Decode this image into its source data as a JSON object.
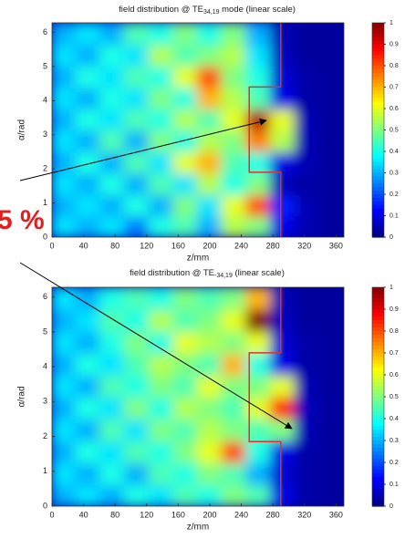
{
  "annotation": "5 %",
  "chart_data": [
    {
      "type": "heatmap",
      "title_parts": [
        "field distribution @ TE",
        "34,19",
        " mode (linear scale)"
      ],
      "x_label": "z/mm",
      "y_label": "α/rad",
      "xlim": [
        0,
        370
      ],
      "ylim": [
        0,
        6.28
      ],
      "xticks": [
        0,
        40,
        80,
        120,
        160,
        200,
        240,
        280,
        320,
        360
      ],
      "yticks": [
        0,
        1,
        2,
        3,
        4,
        5,
        6
      ],
      "colorbar_lim": [
        0,
        1
      ],
      "colorbar_ticks": [
        0,
        0.1,
        0.2,
        0.3,
        0.4,
        0.5,
        0.6,
        0.7,
        0.8,
        0.9,
        1
      ],
      "colormap": "jet",
      "x": [
        15,
        46,
        77,
        108,
        139,
        170,
        200,
        231,
        262,
        293,
        324,
        355
      ],
      "y": [
        0.31,
        0.94,
        1.57,
        2.2,
        2.83,
        3.46,
        4.08,
        4.71,
        5.34,
        5.97
      ],
      "values": [
        [
          0.35,
          0.3,
          0.35,
          0.25,
          0.4,
          0.45,
          0.3,
          0.55,
          0.5,
          0.1,
          0.05,
          0.03
        ],
        [
          0.3,
          0.35,
          0.3,
          0.4,
          0.3,
          0.5,
          0.35,
          0.6,
          0.8,
          0.15,
          0.05,
          0.03
        ],
        [
          0.35,
          0.3,
          0.4,
          0.3,
          0.45,
          0.35,
          0.55,
          0.4,
          0.5,
          0.05,
          0.04,
          0.03
        ],
        [
          0.3,
          0.4,
          0.3,
          0.45,
          0.35,
          0.6,
          0.7,
          0.45,
          0.4,
          0.1,
          0.05,
          0.03
        ],
        [
          0.35,
          0.3,
          0.45,
          0.3,
          0.5,
          0.4,
          0.55,
          0.5,
          0.75,
          0.55,
          0.05,
          0.03
        ],
        [
          0.3,
          0.4,
          0.35,
          0.45,
          0.4,
          0.55,
          0.45,
          0.6,
          0.95,
          0.6,
          0.05,
          0.03
        ],
        [
          0.35,
          0.3,
          0.4,
          0.35,
          0.5,
          0.4,
          0.7,
          0.55,
          0.45,
          0.1,
          0.04,
          0.03
        ],
        [
          0.3,
          0.4,
          0.35,
          0.45,
          0.4,
          0.6,
          0.8,
          0.5,
          0.4,
          0.08,
          0.04,
          0.03
        ],
        [
          0.35,
          0.3,
          0.4,
          0.35,
          0.55,
          0.45,
          0.5,
          0.55,
          0.35,
          0.06,
          0.03,
          0.03
        ],
        [
          0.3,
          0.35,
          0.3,
          0.45,
          0.4,
          0.5,
          0.4,
          0.5,
          0.3,
          0.05,
          0.03,
          0.03
        ]
      ],
      "region": {
        "color": "#e03030",
        "x": [
          290,
          290,
          250,
          250,
          290,
          290
        ],
        "y": [
          6.28,
          4.4,
          4.4,
          1.9,
          1.9,
          0
        ]
      }
    },
    {
      "type": "heatmap",
      "title_parts": [
        "field distribution @ TE",
        "-34,19",
        " (linear scale)"
      ],
      "x_label": "z/mm",
      "y_label": "α/rad",
      "xlim": [
        0,
        370
      ],
      "ylim": [
        0,
        6.28
      ],
      "xticks": [
        0,
        40,
        80,
        120,
        160,
        200,
        240,
        280,
        320,
        360
      ],
      "yticks": [
        0,
        1,
        2,
        3,
        4,
        5,
        6
      ],
      "colorbar_lim": [
        0,
        1
      ],
      "colorbar_ticks": [
        0,
        0.1,
        0.2,
        0.3,
        0.4,
        0.5,
        0.6,
        0.7,
        0.8,
        0.9,
        1
      ],
      "colormap": "jet",
      "x": [
        15,
        46,
        77,
        108,
        139,
        170,
        200,
        231,
        262,
        293,
        324,
        355
      ],
      "y": [
        0.31,
        0.94,
        1.57,
        2.2,
        2.83,
        3.46,
        4.08,
        4.71,
        5.34,
        5.97
      ],
      "values": [
        [
          0.3,
          0.35,
          0.3,
          0.4,
          0.35,
          0.45,
          0.4,
          0.5,
          0.45,
          0.1,
          0.04,
          0.03
        ],
        [
          0.35,
          0.3,
          0.4,
          0.3,
          0.45,
          0.4,
          0.5,
          0.45,
          0.3,
          0.08,
          0.04,
          0.03
        ],
        [
          0.3,
          0.4,
          0.35,
          0.45,
          0.4,
          0.5,
          0.6,
          0.8,
          0.4,
          0.1,
          0.04,
          0.03
        ],
        [
          0.35,
          0.3,
          0.45,
          0.35,
          0.5,
          0.45,
          0.55,
          0.5,
          0.45,
          0.5,
          0.05,
          0.03
        ],
        [
          0.3,
          0.4,
          0.35,
          0.5,
          0.4,
          0.55,
          0.5,
          0.45,
          0.6,
          0.85,
          0.06,
          0.03
        ],
        [
          0.35,
          0.3,
          0.45,
          0.4,
          0.5,
          0.45,
          0.6,
          0.5,
          0.5,
          0.6,
          0.05,
          0.03
        ],
        [
          0.3,
          0.4,
          0.35,
          0.45,
          0.55,
          0.5,
          0.45,
          0.7,
          0.4,
          0.1,
          0.04,
          0.03
        ],
        [
          0.35,
          0.3,
          0.4,
          0.5,
          0.4,
          0.6,
          0.55,
          0.5,
          0.6,
          0.08,
          0.04,
          0.03
        ],
        [
          0.3,
          0.35,
          0.45,
          0.4,
          0.55,
          0.45,
          0.5,
          0.6,
          1.0,
          0.06,
          0.03,
          0.03
        ],
        [
          0.35,
          0.3,
          0.4,
          0.45,
          0.4,
          0.5,
          0.45,
          0.5,
          0.7,
          0.05,
          0.03,
          0.03
        ]
      ],
      "region": {
        "color": "#e03030",
        "x": [
          290,
          290,
          250,
          250,
          290,
          290
        ],
        "y": [
          6.28,
          4.4,
          4.4,
          1.85,
          1.85,
          0
        ]
      }
    }
  ]
}
